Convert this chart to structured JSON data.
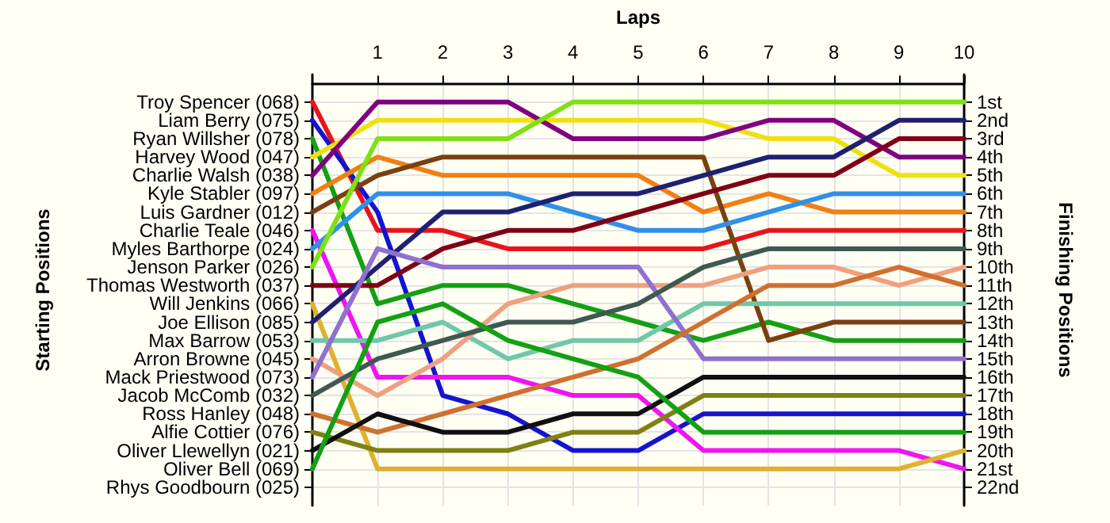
{
  "chart_data": {
    "type": "line",
    "xlabel": "Laps",
    "y2label": "Finishing Positions",
    "x": [
      0,
      1,
      2,
      3,
      4,
      5,
      6,
      7,
      8,
      9,
      10
    ],
    "xlim": [
      0,
      10
    ],
    "xticks": [
      1,
      2,
      3,
      4,
      5,
      6,
      7,
      8,
      9,
      10
    ],
    "y2lim": [
      23,
      -0.5
    ],
    "y2ticks": [
      {
        "value": 1,
        "label": "1st"
      },
      {
        "value": 2,
        "label": "2nd"
      },
      {
        "value": 3,
        "label": "3rd"
      },
      {
        "value": 4,
        "label": "4th"
      },
      {
        "value": 5,
        "label": "5th"
      },
      {
        "value": 6,
        "label": "6th"
      },
      {
        "value": 7,
        "label": "7th"
      },
      {
        "value": 8,
        "label": "8th"
      },
      {
        "value": 9,
        "label": "9th"
      },
      {
        "value": 10,
        "label": "10th"
      },
      {
        "value": 11,
        "label": "11th"
      },
      {
        "value": 12,
        "label": "12th"
      },
      {
        "value": 13,
        "label": "13th"
      },
      {
        "value": 14,
        "label": "14th"
      },
      {
        "value": 15,
        "label": "15th"
      },
      {
        "value": 16,
        "label": "16th"
      },
      {
        "value": 17,
        "label": "17th"
      },
      {
        "value": 18,
        "label": "18th"
      },
      {
        "value": 19,
        "label": "19th"
      },
      {
        "value": 20,
        "label": "20th"
      },
      {
        "value": 21,
        "label": "21st"
      },
      {
        "value": 22,
        "label": "22nd"
      }
    ],
    "annotations": [
      "Starting Positions",
      "Troy Spencer (068)",
      "Liam Berry (075)",
      "Ryan Willsher (078)",
      "Harvey Wood (047)",
      "Charlie Walsh (038)",
      "Kyle Stabler (097)",
      "Luis Gardner (012)",
      "Charlie Teale (046)",
      "Myles Barthorpe (024)",
      "Jenson Parker (026)",
      "Thomas Westworth (037)",
      "Will Jenkins (066)",
      "Joe Ellison (085)",
      "Max Barrow (053)",
      "Arron Browne (045)",
      "Mack Priestwood (073)",
      "Jacob McComb (032)",
      "Ross Hanley (048)",
      "Alfie Cottier (076)",
      "Oliver Llewellyn (021)",
      "Oliver Bell (069)",
      "Rhys Goodbourn (025)"
    ],
    "grid": true,
    "marker": "none",
    "line_style": "solid",
    "series": [
      {
        "axis": "y2",
        "color": "#e8141c",
        "values": [
          1,
          8,
          8,
          9,
          9,
          9,
          9,
          8,
          8,
          8,
          8
        ]
      },
      {
        "axis": "y2",
        "color": "#1414d0",
        "values": [
          2,
          7,
          17,
          18,
          20,
          20,
          18,
          18,
          18,
          18,
          18
        ]
      },
      {
        "axis": "y2",
        "color": "#14a014",
        "values": [
          3,
          12,
          11,
          11,
          12,
          13,
          14,
          13,
          14,
          14,
          14
        ]
      },
      {
        "axis": "y2",
        "color": "#f0e010",
        "values": [
          4,
          2,
          2,
          2,
          2,
          2,
          2,
          3,
          3,
          5,
          5
        ]
      },
      {
        "axis": "y2",
        "color": "#800080",
        "values": [
          5,
          1,
          1,
          1,
          3,
          3,
          3,
          2,
          2,
          4,
          4
        ]
      },
      {
        "axis": "y2",
        "color": "#f08014",
        "values": [
          6,
          4,
          5,
          5,
          5,
          5,
          7,
          6,
          7,
          7,
          7
        ]
      },
      {
        "axis": "y2",
        "color": "#7a4010",
        "values": [
          7,
          5,
          4,
          4,
          4,
          4,
          4,
          14,
          13,
          13,
          13
        ]
      },
      {
        "axis": "y2",
        "color": "#f014f0",
        "values": [
          8,
          16,
          16,
          16,
          17,
          17,
          20,
          20,
          20,
          20,
          21
        ]
      },
      {
        "axis": "y2",
        "color": "#3090e8",
        "values": [
          9,
          6,
          6,
          6,
          7,
          8,
          8,
          7,
          6,
          6,
          6
        ]
      },
      {
        "axis": "y2",
        "color": "#80e014",
        "values": [
          10,
          3,
          3,
          3,
          1,
          1,
          1,
          1,
          1,
          1,
          1
        ]
      },
      {
        "axis": "y2",
        "color": "#800014",
        "values": [
          11,
          11,
          9,
          8,
          8,
          7,
          6,
          5,
          5,
          3,
          3
        ]
      },
      {
        "axis": "y2",
        "color": "#e0b030",
        "values": [
          12,
          21,
          21,
          21,
          21,
          21,
          21,
          21,
          21,
          21,
          20
        ]
      },
      {
        "axis": "y2",
        "color": "#202070",
        "values": [
          13,
          10,
          7,
          7,
          6,
          6,
          5,
          4,
          4,
          2,
          2
        ]
      },
      {
        "axis": "y2",
        "color": "#70c8a8",
        "values": [
          14,
          14,
          13,
          15,
          14,
          14,
          12,
          12,
          12,
          12,
          12
        ]
      },
      {
        "axis": "y2",
        "color": "#f0a080",
        "values": [
          15,
          17,
          15,
          12,
          11,
          11,
          11,
          10,
          10,
          11,
          10
        ]
      },
      {
        "axis": "y2",
        "color": "#9070d0",
        "values": [
          16,
          9,
          10,
          10,
          10,
          10,
          15,
          15,
          15,
          15,
          15
        ]
      },
      {
        "axis": "y2",
        "color": "#405850",
        "values": [
          17,
          15,
          14,
          13,
          13,
          12,
          10,
          9,
          9,
          9,
          9
        ]
      },
      {
        "axis": "y2",
        "color": "#d07030",
        "values": [
          18,
          19,
          18,
          17,
          16,
          15,
          13,
          11,
          11,
          10,
          11
        ]
      },
      {
        "axis": "y2",
        "color": "#808014",
        "values": [
          19,
          20,
          20,
          20,
          19,
          19,
          17,
          17,
          17,
          17,
          17
        ]
      },
      {
        "axis": "y2",
        "color": "#101010",
        "values": [
          20,
          18,
          19,
          19,
          18,
          18,
          16,
          16,
          16,
          16,
          16
        ]
      },
      {
        "axis": "y2",
        "color": "#14a014",
        "values": [
          21,
          13,
          12,
          14,
          15,
          16,
          19,
          19,
          19,
          19,
          19
        ]
      }
    ]
  }
}
